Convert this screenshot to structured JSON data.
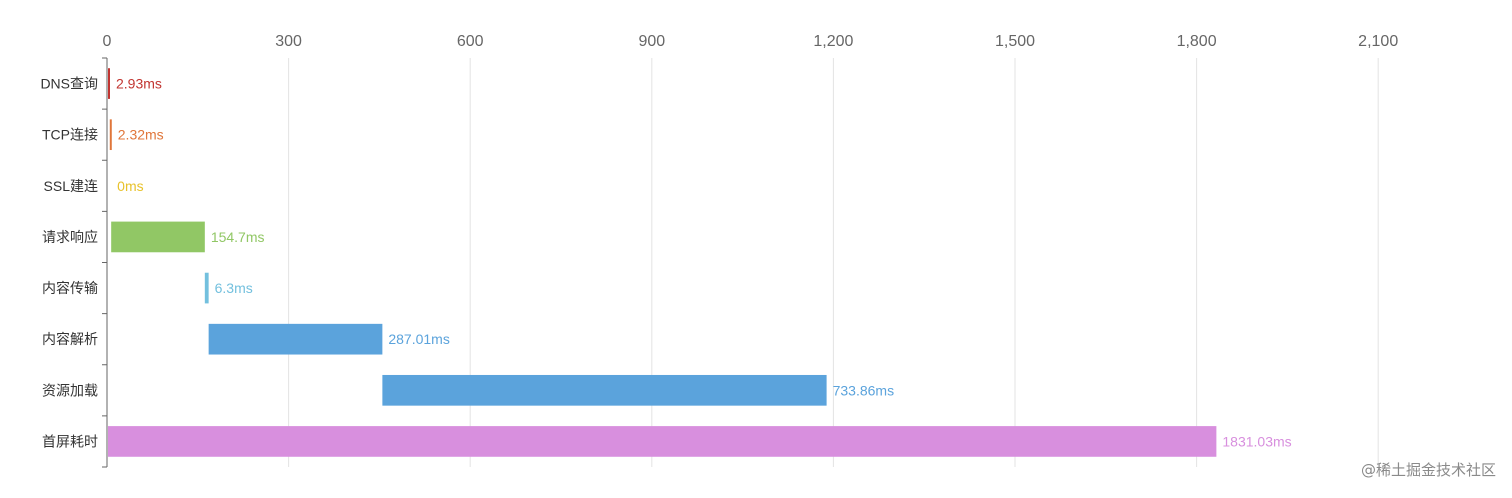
{
  "chart_data": {
    "type": "bar",
    "orientation": "horizontal",
    "stacked_waterfall": true,
    "categories": [
      "DNS查询",
      "TCP连接",
      "SSL建连",
      "请求响应",
      "内容传输",
      "内容解析",
      "资源加载",
      "首屏耗时"
    ],
    "starts": [
      0,
      2.93,
      5.25,
      5.25,
      159.95,
      166.25,
      453.26,
      0
    ],
    "values": [
      2.93,
      2.32,
      0,
      154.7,
      6.3,
      287.01,
      733.86,
      1831.03
    ],
    "labels": [
      "2.93ms",
      "2.32ms",
      "0ms",
      "154.7ms",
      "6.3ms",
      "287.01ms",
      "733.86ms",
      "1831.03ms"
    ],
    "colors": [
      "#c23531",
      "#e0763a",
      "#e8c22b",
      "#91c765",
      "#73c0de",
      "#5ba3dc",
      "#5ba3dc",
      "#d88fde"
    ],
    "xaxis": {
      "position": "top",
      "min": 0,
      "max": 2250,
      "ticks": [
        0,
        300,
        600,
        900,
        1200,
        1500,
        1800,
        2100
      ],
      "tick_labels": [
        "0",
        "300",
        "600",
        "900",
        "1,200",
        "1,500",
        "1,800",
        "2,100"
      ]
    },
    "grid": true,
    "title": "",
    "xlabel": "",
    "ylabel": ""
  },
  "watermark": "@稀土掘金技术社区"
}
